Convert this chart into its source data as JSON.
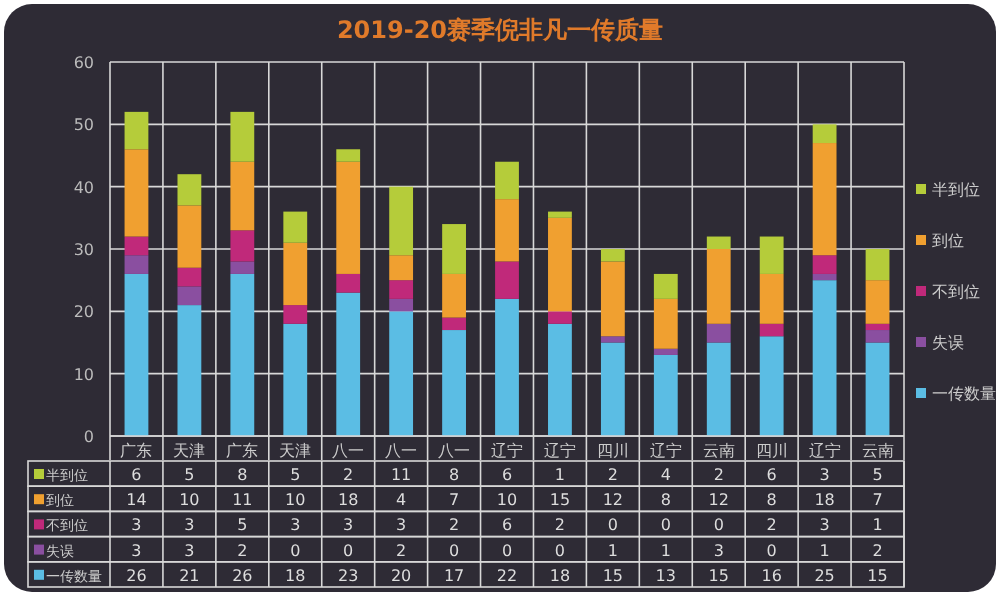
{
  "chart_data": {
    "type": "bar",
    "title": "2019-20赛季倪非凡一传质量",
    "stacked": true,
    "data_labels": true,
    "grid": true,
    "legend": "right",
    "categories": [
      "广东",
      "天津",
      "广东",
      "天津",
      "八一",
      "八一",
      "八一",
      "辽宁",
      "辽宁",
      "四川",
      "辽宁",
      "云南",
      "四川",
      "辽宁",
      "云南"
    ],
    "ylim": [
      0,
      60
    ],
    "yticks": [
      0,
      10,
      20,
      30,
      40,
      50,
      60
    ],
    "series": [
      {
        "name": "一传数量",
        "color": "#5bbde4",
        "values": [
          26,
          21,
          26,
          18,
          23,
          20,
          17,
          22,
          18,
          15,
          13,
          15,
          16,
          25,
          15
        ]
      },
      {
        "name": "失误",
        "color": "#8a4fa0",
        "values": [
          3,
          3,
          2,
          0,
          0,
          2,
          0,
          0,
          0,
          1,
          1,
          3,
          0,
          1,
          2
        ]
      },
      {
        "name": "不到位",
        "color": "#c0297a",
        "values": [
          3,
          3,
          5,
          3,
          3,
          3,
          2,
          6,
          2,
          0,
          0,
          0,
          2,
          3,
          1
        ]
      },
      {
        "name": "到位",
        "color": "#f0a030",
        "values": [
          14,
          10,
          11,
          10,
          18,
          4,
          7,
          10,
          15,
          12,
          8,
          12,
          8,
          18,
          7
        ]
      },
      {
        "name": "半到位",
        "color": "#b5cc3a",
        "values": [
          6,
          5,
          8,
          5,
          2,
          11,
          8,
          6,
          1,
          2,
          4,
          2,
          6,
          3,
          5
        ]
      }
    ]
  }
}
